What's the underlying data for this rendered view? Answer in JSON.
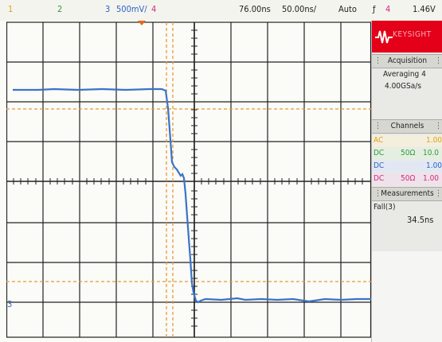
{
  "status_bar": {
    "ch1": "1",
    "ch2": "2",
    "ch3": "3",
    "ch3_scale": "500mV/",
    "ch4": "4",
    "trigger_delay": "76.00ns",
    "timebase": "50.00ns/",
    "trigger_mode": "Auto",
    "trigger_symbol": "ƒ",
    "trigger_source": "4",
    "trigger_level": "1.46V"
  },
  "side_panel": {
    "logo_text": "KEYSIGHT",
    "acquisition": {
      "title": "Acquisition",
      "mode": "Averaging 4",
      "rate": "4.00GSa/s"
    },
    "channels": {
      "title": "Channels",
      "rows": [
        {
          "coupling": "AC",
          "impedance": "",
          "value": "1.00",
          "color": "#e0a21a"
        },
        {
          "coupling": "DC",
          "impedance": "50Ω",
          "value": "10.0",
          "color": "#2f9a3a"
        },
        {
          "coupling": "DC",
          "impedance": "",
          "value": "1.00",
          "color": "#2d63c7"
        },
        {
          "coupling": "DC",
          "impedance": "50Ω",
          "value": "1.00",
          "color": "#d22b7a"
        }
      ]
    },
    "measurements": {
      "title": "Measurements",
      "name": "Fall(3)",
      "value": "34.5ns"
    }
  },
  "screen": {
    "ground_marker": "3",
    "colors": {
      "background": "#fbfbf7",
      "grid": "#222222",
      "trace": "#3a73c9",
      "trigger_cursor": "#e39a3a",
      "level_cursor": "#e3883a"
    }
  }
}
